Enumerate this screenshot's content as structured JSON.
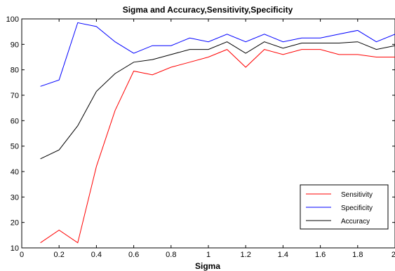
{
  "chart_data": {
    "type": "line",
    "title": "Sigma and Accuracy,Sensitivity,Specificity",
    "xlabel": "Sigma",
    "ylabel": "",
    "xlim": [
      0,
      2
    ],
    "ylim": [
      10,
      100
    ],
    "x_ticks": [
      "0",
      "0.2",
      "0.4",
      "0.6",
      "0.8",
      "1",
      "1.2",
      "1.4",
      "1.6",
      "1.8",
      "2"
    ],
    "y_ticks": [
      "10",
      "20",
      "30",
      "40",
      "50",
      "60",
      "70",
      "80",
      "90",
      "100"
    ],
    "grid": false,
    "legend_position": "bottom-right",
    "x": [
      0.1,
      0.2,
      0.3,
      0.4,
      0.5,
      0.6,
      0.7,
      0.8,
      0.9,
      1.0,
      1.1,
      1.2,
      1.3,
      1.4,
      1.5,
      1.6,
      1.7,
      1.8,
      1.9,
      2.0
    ],
    "series": [
      {
        "name": "Sensitivity",
        "color": "#ff0000",
        "values": [
          12,
          17,
          12,
          42,
          64,
          79.5,
          78,
          81,
          83,
          85,
          88,
          81,
          88,
          86,
          88,
          88,
          86,
          86,
          85,
          85
        ]
      },
      {
        "name": "Specificity",
        "color": "#0000ff",
        "values": [
          73.5,
          76,
          98.5,
          97,
          91,
          86.5,
          89.5,
          89.5,
          92.5,
          91,
          94,
          91,
          94,
          91,
          92.5,
          92.5,
          94,
          95.5,
          91,
          94
        ]
      },
      {
        "name": "Accuracy",
        "color": "#000000",
        "values": [
          45,
          48.5,
          58,
          71.5,
          78.5,
          83,
          84,
          86,
          88,
          88,
          91,
          86.5,
          91,
          88.5,
          90.5,
          90.5,
          90.5,
          91,
          88,
          89.5
        ]
      }
    ]
  }
}
